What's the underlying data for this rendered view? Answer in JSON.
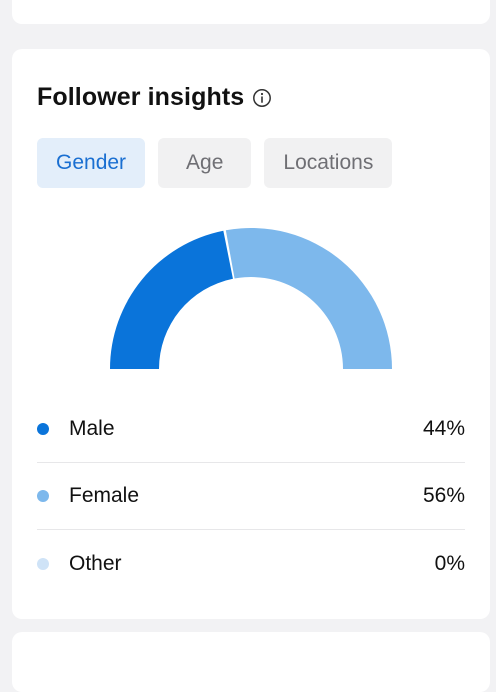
{
  "insights": {
    "title": "Follower insights",
    "info_icon": "info-circle-icon",
    "tabs": [
      {
        "label": "Gender",
        "active": true
      },
      {
        "label": "Age",
        "active": false
      },
      {
        "label": "Locations",
        "active": false
      }
    ]
  },
  "chart_data": {
    "type": "pie",
    "categories": [
      "Male",
      "Female",
      "Other"
    ],
    "values": [
      44,
      56,
      0
    ],
    "colors": [
      "#0a74da",
      "#7db8ec",
      "#cfe3f7"
    ]
  },
  "legend": [
    {
      "label": "Male",
      "value": "44%",
      "color": "#0a74da"
    },
    {
      "label": "Female",
      "value": "56%",
      "color": "#7db8ec"
    },
    {
      "label": "Other",
      "value": "0%",
      "color": "#cfe3f7"
    }
  ]
}
